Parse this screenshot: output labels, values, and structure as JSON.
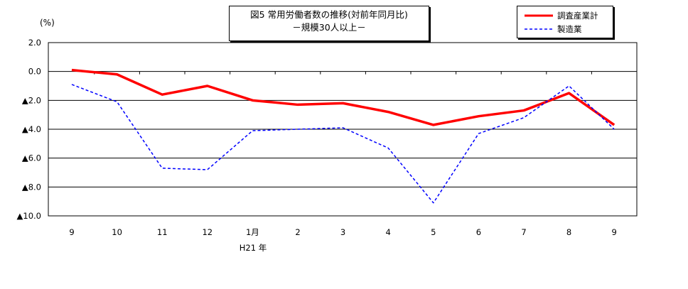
{
  "title": {
    "line1": "図5 常用労働者数の推移(対前年同月比)",
    "line2": "－規模30人以上－"
  },
  "unit_label": "(%)",
  "year_marker": "H21 年",
  "chart_data": {
    "type": "line",
    "categories": [
      "9",
      "10",
      "11",
      "12",
      "1月",
      "2",
      "3",
      "4",
      "5",
      "6",
      "7",
      "8",
      "9"
    ],
    "ylim": [
      -10.0,
      2.0
    ],
    "y_ticks": [
      {
        "value": 2.0,
        "label": "2.0"
      },
      {
        "value": 0.0,
        "label": "0.0"
      },
      {
        "value": -2.0,
        "label": "▲2.0"
      },
      {
        "value": -4.0,
        "label": "▲4.0"
      },
      {
        "value": -6.0,
        "label": "▲6.0"
      },
      {
        "value": -8.0,
        "label": "▲8.0"
      },
      {
        "value": -10.0,
        "label": "▲10.0"
      }
    ],
    "grid": true,
    "legend_position": "top-right",
    "series": [
      {
        "name": "調査産業計",
        "color": "#ff0000",
        "style": "solid",
        "values": [
          0.1,
          -0.2,
          -1.6,
          -1.0,
          -2.0,
          -2.3,
          -2.2,
          -2.8,
          -3.7,
          -3.1,
          -2.7,
          -1.5,
          -3.7
        ]
      },
      {
        "name": "製造業",
        "color": "#0000ff",
        "style": "dashed",
        "values": [
          -0.9,
          -2.1,
          -6.7,
          -6.8,
          -4.1,
          -4.0,
          -3.9,
          -5.3,
          -9.1,
          -4.3,
          -3.2,
          -1.0,
          -4.0
        ]
      }
    ]
  }
}
